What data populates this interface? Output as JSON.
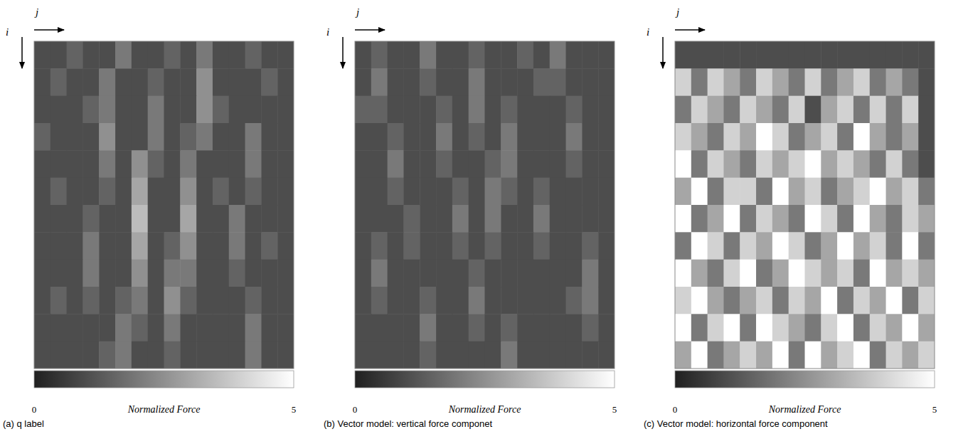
{
  "chart_data": [
    {
      "type": "heatmap",
      "title": "(a) q label",
      "x_label": "j",
      "y_label": "i",
      "tick_labels": false,
      "colorbar": {
        "label": "Normalized Force",
        "range": [
          0,
          5
        ],
        "ticks": [
          0,
          5
        ]
      },
      "cells": [
        [
          1,
          1,
          1.5,
          1,
          1,
          2,
          1,
          1,
          1.5,
          1,
          2,
          1,
          1,
          1.5,
          1,
          1
        ],
        [
          1,
          1.5,
          1,
          1,
          2,
          1,
          1,
          1.5,
          1,
          1,
          2.5,
          1,
          1,
          1,
          1.5,
          1
        ],
        [
          1,
          1,
          1,
          1.5,
          2,
          1,
          1,
          2,
          1,
          1,
          2.5,
          1.5,
          1,
          1,
          1,
          1
        ],
        [
          1.5,
          1,
          1,
          1,
          2.5,
          1,
          1,
          2,
          1,
          1.5,
          2,
          1,
          1,
          2,
          1,
          1
        ],
        [
          1,
          1,
          1,
          1,
          2,
          1,
          2.5,
          1.5,
          1,
          2,
          1,
          1,
          1,
          2,
          1,
          1
        ],
        [
          1,
          1.5,
          1,
          1,
          1.5,
          1,
          3,
          1,
          1,
          2.5,
          1,
          1.5,
          1,
          1.5,
          1,
          1
        ],
        [
          1,
          1,
          1,
          1.5,
          1,
          1,
          3.5,
          1,
          1,
          3,
          1,
          1,
          2,
          1,
          1,
          1
        ],
        [
          1,
          1,
          1,
          2,
          1,
          1,
          3,
          1,
          1.5,
          2.5,
          1,
          1,
          2,
          1,
          1.5,
          1
        ],
        [
          1,
          1,
          1,
          2,
          1,
          1,
          2.5,
          1,
          2,
          2,
          1,
          1,
          1.5,
          1,
          1,
          1
        ],
        [
          1,
          1.5,
          1,
          1.5,
          1,
          1.5,
          2,
          1,
          2.5,
          1.5,
          1,
          1,
          1,
          1.5,
          1,
          1
        ],
        [
          1,
          1,
          1,
          1,
          1,
          2,
          1.5,
          1,
          2,
          1,
          1,
          1,
          1,
          2,
          1,
          1
        ],
        [
          1,
          1,
          1,
          1,
          1.5,
          2,
          1,
          1,
          1.5,
          1,
          1,
          1,
          1,
          2,
          1,
          1
        ]
      ]
    },
    {
      "type": "heatmap",
      "title": "(b)  Vector model: vertical force componet",
      "x_label": "j",
      "y_label": "i",
      "tick_labels": false,
      "colorbar": {
        "label": "Normalized Force",
        "range": [
          0,
          5
        ],
        "ticks": [
          0,
          5
        ]
      },
      "cells": [
        [
          1,
          1.5,
          1,
          1,
          2,
          1,
          1,
          1.5,
          1,
          1,
          1.5,
          1,
          2,
          1,
          1,
          1
        ],
        [
          1,
          2,
          1,
          1,
          1.5,
          1,
          1,
          2,
          1,
          1,
          1,
          1.5,
          1.5,
          1,
          1,
          1
        ],
        [
          1.5,
          1.5,
          1,
          1,
          1,
          1.5,
          1,
          2,
          1,
          1.5,
          1,
          1,
          1,
          1.5,
          1,
          1
        ],
        [
          1,
          1,
          1.5,
          1,
          1,
          2,
          1,
          1.5,
          1,
          2,
          1,
          1,
          1,
          2,
          1,
          1
        ],
        [
          1,
          1,
          2,
          1,
          1,
          1.5,
          1,
          1,
          1.5,
          2,
          1,
          1,
          1,
          1.5,
          1,
          1
        ],
        [
          1,
          1,
          1.5,
          1,
          1,
          1,
          1.5,
          1,
          2,
          1.5,
          1,
          1.5,
          1,
          1,
          1,
          1
        ],
        [
          1,
          1,
          1,
          1.5,
          1,
          1,
          2,
          1,
          2,
          1,
          1,
          2,
          1,
          1,
          1,
          1
        ],
        [
          1,
          1.5,
          1,
          1.5,
          1,
          1,
          1.5,
          1,
          1.5,
          1,
          1,
          1.5,
          1,
          1,
          1.5,
          1
        ],
        [
          1,
          2,
          1,
          1,
          1,
          1,
          1,
          1.5,
          1,
          1,
          1,
          1,
          1,
          1,
          2,
          1
        ],
        [
          1,
          1.5,
          1,
          1,
          1.5,
          1,
          1,
          2,
          1,
          1,
          1,
          1,
          1,
          1.5,
          2,
          1
        ],
        [
          1,
          1,
          1,
          1,
          2,
          1,
          1,
          1.5,
          1,
          1.5,
          1,
          1,
          1,
          1,
          1.5,
          1
        ],
        [
          1,
          1,
          1,
          1,
          1.5,
          1,
          1,
          1,
          1,
          2,
          1,
          1,
          1,
          1,
          1,
          1
        ]
      ]
    },
    {
      "type": "heatmap",
      "title": "(c)  Vector model:  horizontal force component",
      "x_label": "j",
      "y_label": "i",
      "tick_labels": false,
      "colorbar": {
        "label": "Normalized Force",
        "range": [
          0,
          5
        ],
        "ticks": [
          0,
          5
        ]
      },
      "cells": [
        [
          1,
          1,
          1,
          1,
          1,
          1,
          1,
          1,
          1,
          1,
          1,
          1,
          1,
          1,
          1,
          1
        ],
        [
          4,
          2,
          4,
          3,
          2,
          4,
          3,
          2,
          4,
          2,
          3,
          4,
          2,
          3,
          2,
          1
        ],
        [
          2,
          4,
          3,
          2,
          4,
          3,
          2,
          4,
          1,
          3,
          4,
          2,
          4,
          2,
          4,
          1
        ],
        [
          4,
          3,
          2,
          4,
          3,
          5,
          4,
          2,
          3,
          4,
          2,
          5,
          3,
          2,
          3,
          1
        ],
        [
          5,
          2,
          4,
          3,
          2,
          4,
          3,
          4,
          5,
          3,
          4,
          3,
          2,
          4,
          2,
          1
        ],
        [
          3,
          5,
          2,
          4,
          4,
          2,
          5,
          3,
          4,
          2,
          3,
          4,
          5,
          3,
          4,
          2
        ],
        [
          5,
          2,
          3,
          5,
          2,
          4,
          3,
          2,
          5,
          4,
          2,
          5,
          3,
          2,
          4,
          3
        ],
        [
          2,
          5,
          4,
          2,
          4,
          3,
          5,
          4,
          2,
          3,
          5,
          3,
          4,
          2,
          5,
          2
        ],
        [
          5,
          3,
          2,
          4,
          5,
          2,
          3,
          5,
          4,
          3,
          4,
          2,
          5,
          3,
          4,
          3
        ],
        [
          4,
          5,
          3,
          2,
          3,
          4,
          2,
          4,
          3,
          5,
          2,
          4,
          3,
          5,
          2,
          4
        ],
        [
          5,
          2,
          4,
          5,
          2,
          5,
          4,
          3,
          2,
          4,
          5,
          2,
          4,
          3,
          5,
          3
        ],
        [
          3,
          5,
          2,
          3,
          4,
          3,
          5,
          2,
          5,
          3,
          4,
          5,
          2,
          4,
          3,
          4
        ]
      ]
    }
  ]
}
